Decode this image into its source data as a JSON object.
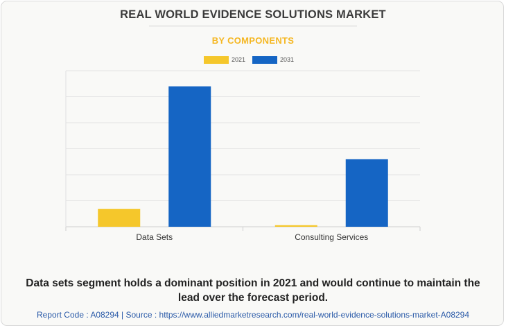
{
  "header": {
    "title": "REAL WORLD EVIDENCE SOLUTIONS MARKET",
    "subtitle": "BY COMPONENTS"
  },
  "legend": [
    {
      "label": "2021",
      "color": "#f5c72b"
    },
    {
      "label": "2031",
      "color": "#1565c4"
    }
  ],
  "chart_data": {
    "type": "bar",
    "title": "REAL WORLD EVIDENCE SOLUTIONS MARKET",
    "subtitle": "BY COMPONENTS",
    "categories": [
      "Data Sets",
      "Consulting Services"
    ],
    "series": [
      {
        "name": "2021",
        "color": "#f5c72b",
        "values": [
          0.69,
          0.06
        ]
      },
      {
        "name": "2031",
        "color": "#1565c4",
        "values": [
          5.4,
          2.6
        ]
      }
    ],
    "ylim": [
      0,
      6
    ],
    "grid": true,
    "legend_position": "top"
  },
  "footer": {
    "description": "Data sets segment holds a dominant position in 2021 and would continue to maintain the lead over the forecast period.",
    "source": "Report Code : A08294  |  Source : https://www.alliedmarketresearch.com/real-world-evidence-solutions-market-A08294"
  }
}
